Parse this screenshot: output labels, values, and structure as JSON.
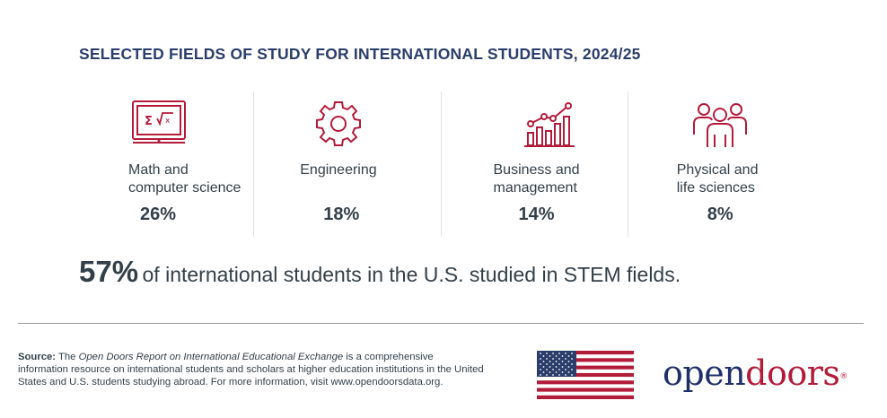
{
  "title": "SELECTED FIELDS OF STUDY FOR INTERNATIONAL STUDENTS, 2024/25",
  "fields": [
    {
      "icon": "math-screen-icon",
      "label": "Math and\ncomputer science",
      "value": "26%"
    },
    {
      "icon": "gear-icon",
      "label": "Engineering",
      "value": "18%"
    },
    {
      "icon": "business-chart-icon",
      "label": "Business and\nmanagement",
      "value": "14%"
    },
    {
      "icon": "people-group-icon",
      "label": "Physical and\nlife sciences",
      "value": "8%"
    }
  ],
  "stem": {
    "percent": "57%",
    "text": "of international students in the U.S. studied in STEM fields."
  },
  "source": {
    "label": "Source:",
    "text_before": "The",
    "report_name": "Open Doors Report on International Educational Exchange",
    "text_after": "is a comprehensive information resource on international students and scholars at higher education institutions in the United States and U.S. students studying abroad. For more information, visit www.opendoorsdata.org."
  },
  "logo": {
    "part1": "open",
    "part2": "doors",
    "reg": "®"
  },
  "colors": {
    "title": "#2a3d6b",
    "icon_red": "#b31b3a",
    "text": "#333f48",
    "logo_blue": "#1f2f6a",
    "logo_red": "#b31b3a"
  }
}
